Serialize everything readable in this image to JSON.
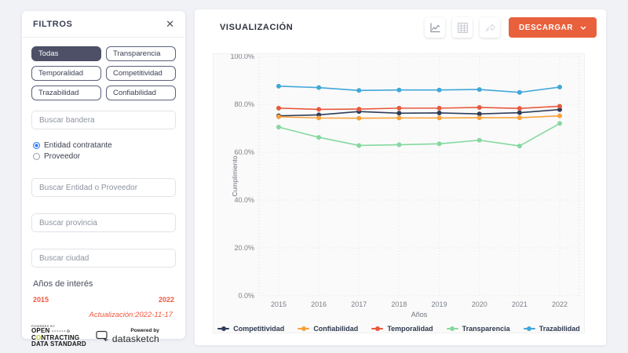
{
  "sidebar": {
    "title": "FILTROS",
    "close_label": "✕",
    "filter_buttons": [
      {
        "label": "Todas",
        "selected": true
      },
      {
        "label": "Transparencia",
        "selected": false
      },
      {
        "label": "Temporalidad",
        "selected": false
      },
      {
        "label": "Competitividad",
        "selected": false
      },
      {
        "label": "Trazabilidad",
        "selected": false
      },
      {
        "label": "Confiabilidad",
        "selected": false
      }
    ],
    "search_flag": {
      "placeholder": "Buscar bandera",
      "value": ""
    },
    "radio_options": [
      {
        "label": "Entidad contratante",
        "selected": true
      },
      {
        "label": "Proveedor",
        "selected": false
      }
    ],
    "search_entity": {
      "placeholder": "Buscar Entidad o Proveedor",
      "value": ""
    },
    "search_province": {
      "placeholder": "Buscar provincia",
      "value": ""
    },
    "search_city": {
      "placeholder": "Buscar ciudad",
      "value": ""
    },
    "years_label": "Años de interés",
    "year_min": "2015",
    "year_max": "2022",
    "update_note": "Actualización:2022-11-17",
    "ocds_logo": {
      "powered": "POWERED BY",
      "line1": "OPEN",
      "dots": "••••••⊕",
      "line2_a": "C",
      "line2_b": "O",
      "line2_c": "NTRACTING",
      "line3": "DATA STANDARD"
    },
    "datasketch_logo": {
      "powered": "Powered by",
      "name": "datasketch"
    }
  },
  "main": {
    "title": "VISUALIZACIÓN",
    "toolbar": {
      "icons": [
        "line-chart",
        "table",
        "share"
      ],
      "download_label": "DESCARGAR"
    }
  },
  "chart_data": {
    "type": "line",
    "x": [
      2015,
      2016,
      2017,
      2018,
      2019,
      2020,
      2021,
      2022
    ],
    "series": [
      {
        "name": "Competitividad",
        "color": "#2e3d59",
        "values": [
          75.2,
          75.6,
          77.0,
          76.3,
          76.4,
          76.0,
          76.5,
          77.8
        ]
      },
      {
        "name": "Confiabilidad",
        "color": "#f9a13a",
        "values": [
          74.8,
          74.3,
          74.2,
          74.3,
          74.3,
          74.4,
          74.4,
          75.2
        ]
      },
      {
        "name": "Temporalidad",
        "color": "#e8593d",
        "values": [
          78.4,
          77.9,
          78.0,
          78.4,
          78.4,
          78.7,
          78.3,
          79.2
        ]
      },
      {
        "name": "Transparencia",
        "color": "#85d8a0",
        "values": [
          70.5,
          66.2,
          62.8,
          63.1,
          63.5,
          65.0,
          62.6,
          72.0
        ]
      },
      {
        "name": "Trazabilidad",
        "color": "#41a7d8",
        "values": [
          87.6,
          87.0,
          85.8,
          86.0,
          86.0,
          86.2,
          85.0,
          87.2
        ]
      }
    ],
    "title": "",
    "xlabel": "Años",
    "ylabel": "Cumplimiento",
    "ylim": [
      0,
      100
    ],
    "ytick_step": 20,
    "grid": "dotted",
    "legend_position": "bottom"
  },
  "colors": {
    "accent_orange": "#e8613c",
    "filter_selected_bg": "#4d5066",
    "highlight_red": "#f1573f",
    "radio_blue": "#2879fe",
    "chart_bg": "#fafafa"
  }
}
